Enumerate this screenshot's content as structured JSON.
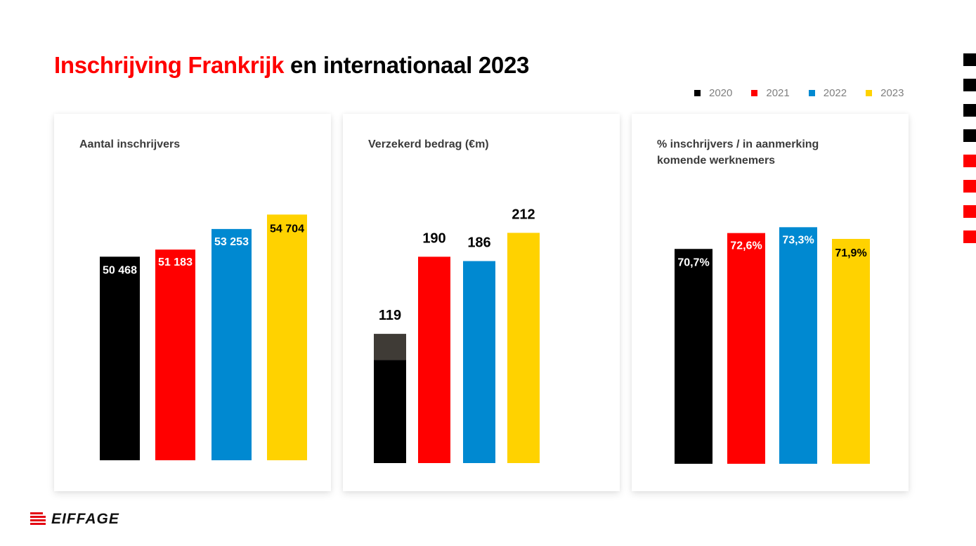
{
  "title": {
    "highlight": "Inschrijving Frankrijk",
    "rest": " en internationaal 2023"
  },
  "colors": {
    "2020": "#000000",
    "2021": "#ff0000",
    "2022": "#0089d1",
    "2023": "#ffd200",
    "accent": "#ff0000",
    "highlight_2020_top": "#3f3b36"
  },
  "legend": [
    {
      "label": "2020",
      "color": "#000000"
    },
    {
      "label": "2021",
      "color": "#ff0000"
    },
    {
      "label": "2022",
      "color": "#0089d1"
    },
    {
      "label": "2023",
      "color": "#ffd200"
    }
  ],
  "side_nav": [
    "#000000",
    "#000000",
    "#000000",
    "#000000",
    "#ff0000",
    "#ff0000",
    "#ff0000",
    "#ff0000"
  ],
  "logo": {
    "text": "EIFFAGE"
  },
  "chart_data": [
    {
      "type": "bar",
      "title": "Aantal inschrijvers",
      "categories": [
        "2020",
        "2021",
        "2022",
        "2023"
      ],
      "values": [
        50468,
        51183,
        53253,
        54704
      ],
      "labels": [
        "50 468",
        "51 183",
        "53 253",
        "54 704"
      ],
      "label_position": "inside-top",
      "label_colors": [
        "#ffffff",
        "#ffffff",
        "#ffffff",
        "#000000"
      ],
      "ylim": [
        0,
        56000
      ],
      "xlabel": "",
      "ylabel": "",
      "grid": false
    },
    {
      "type": "bar",
      "title": "Verzekerd bedrag (€m)",
      "categories": [
        "2020",
        "2021",
        "2022",
        "2023"
      ],
      "values": [
        119,
        190,
        186,
        212
      ],
      "labels": [
        "119",
        "190",
        "186",
        "212"
      ],
      "label_position": "above",
      "label_colors": [
        "#000000",
        "#000000",
        "#000000",
        "#000000"
      ],
      "stacked_2020": {
        "base": 95,
        "top": 24
      },
      "ylim": [
        0,
        220
      ],
      "xlabel": "",
      "ylabel": "",
      "grid": false
    },
    {
      "type": "bar",
      "title": "% inschrijvers / in aanmerking komende werknemers",
      "categories": [
        "2020",
        "2021",
        "2022",
        "2023"
      ],
      "values": [
        70.7,
        72.6,
        73.3,
        71.9
      ],
      "labels": [
        "70,7%",
        "72,6%",
        "73,3%",
        "71,9%"
      ],
      "label_position": "inside-top",
      "label_colors": [
        "#ffffff",
        "#ffffff",
        "#ffffff",
        "#000000"
      ],
      "ylim": [
        0,
        74
      ],
      "xlabel": "",
      "ylabel": "",
      "grid": false
    }
  ]
}
